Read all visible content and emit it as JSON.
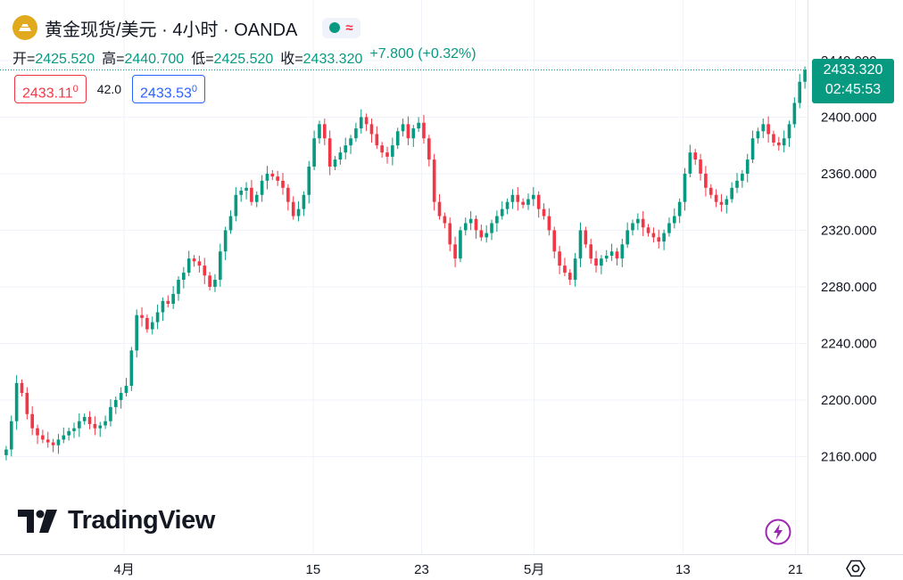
{
  "header": {
    "title": "黄金现货/美元 · 4小时 · OANDA",
    "status_symbol": "≈"
  },
  "ohlc": {
    "open_label": "开=",
    "open": "2425.520",
    "high_label": "高=",
    "high": "2440.700",
    "low_label": "低=",
    "low": "2425.520",
    "close_label": "收=",
    "close": "2433.320",
    "change": "+7.800 (+0.32%)"
  },
  "quotes": {
    "sell_main": "2433.11",
    "sell_sup": "0",
    "spread": "42.0",
    "buy_main": "2433.53",
    "buy_sup": "0"
  },
  "price_tag": {
    "price": "2433.320",
    "countdown": "02:45:53"
  },
  "logo": {
    "text": "TradingView"
  },
  "colors": {
    "up": "#089981",
    "down": "#f23645",
    "grid": "#f0f3fa",
    "accent": "#2962ff"
  },
  "chart_data": {
    "type": "candlestick",
    "ylim": [
      2125,
      2445
    ],
    "y_ticks": [
      2160,
      2200,
      2240,
      2280,
      2320,
      2360,
      2400,
      2440
    ],
    "y_tick_labels": [
      "2160.000",
      "2200.000",
      "2240.000",
      "2280.000",
      "2320.000",
      "2360.000",
      "2400.000",
      "2440.000"
    ],
    "x_ticks": [
      "4月",
      "15",
      "23",
      "5月",
      "13",
      "21"
    ],
    "last_price": 2433.32,
    "closes": [
      2165,
      2185,
      2212,
      2205,
      2190,
      2180,
      2175,
      2172,
      2170,
      2168,
      2172,
      2175,
      2178,
      2180,
      2185,
      2188,
      2183,
      2180,
      2182,
      2185,
      2195,
      2200,
      2205,
      2210,
      2235,
      2260,
      2258,
      2250,
      2255,
      2262,
      2270,
      2268,
      2275,
      2285,
      2290,
      2300,
      2298,
      2295,
      2288,
      2280,
      2285,
      2305,
      2320,
      2330,
      2345,
      2348,
      2350,
      2340,
      2345,
      2355,
      2360,
      2358,
      2355,
      2350,
      2340,
      2330,
      2335,
      2345,
      2365,
      2385,
      2395,
      2385,
      2365,
      2370,
      2375,
      2380,
      2385,
      2392,
      2400,
      2395,
      2388,
      2380,
      2375,
      2372,
      2380,
      2390,
      2395,
      2385,
      2392,
      2396,
      2385,
      2370,
      2340,
      2330,
      2325,
      2310,
      2300,
      2320,
      2325,
      2328,
      2320,
      2315,
      2318,
      2325,
      2330,
      2335,
      2340,
      2345,
      2340,
      2338,
      2342,
      2345,
      2335,
      2330,
      2320,
      2305,
      2295,
      2290,
      2285,
      2300,
      2320,
      2310,
      2300,
      2295,
      2300,
      2302,
      2305,
      2300,
      2310,
      2320,
      2325,
      2328,
      2322,
      2318,
      2315,
      2312,
      2318,
      2325,
      2330,
      2340,
      2360,
      2375,
      2370,
      2360,
      2350,
      2345,
      2340,
      2338,
      2342,
      2350,
      2355,
      2360,
      2370,
      2385,
      2390,
      2395,
      2388,
      2382,
      2380,
      2385,
      2395,
      2410,
      2425,
      2433.32
    ]
  }
}
